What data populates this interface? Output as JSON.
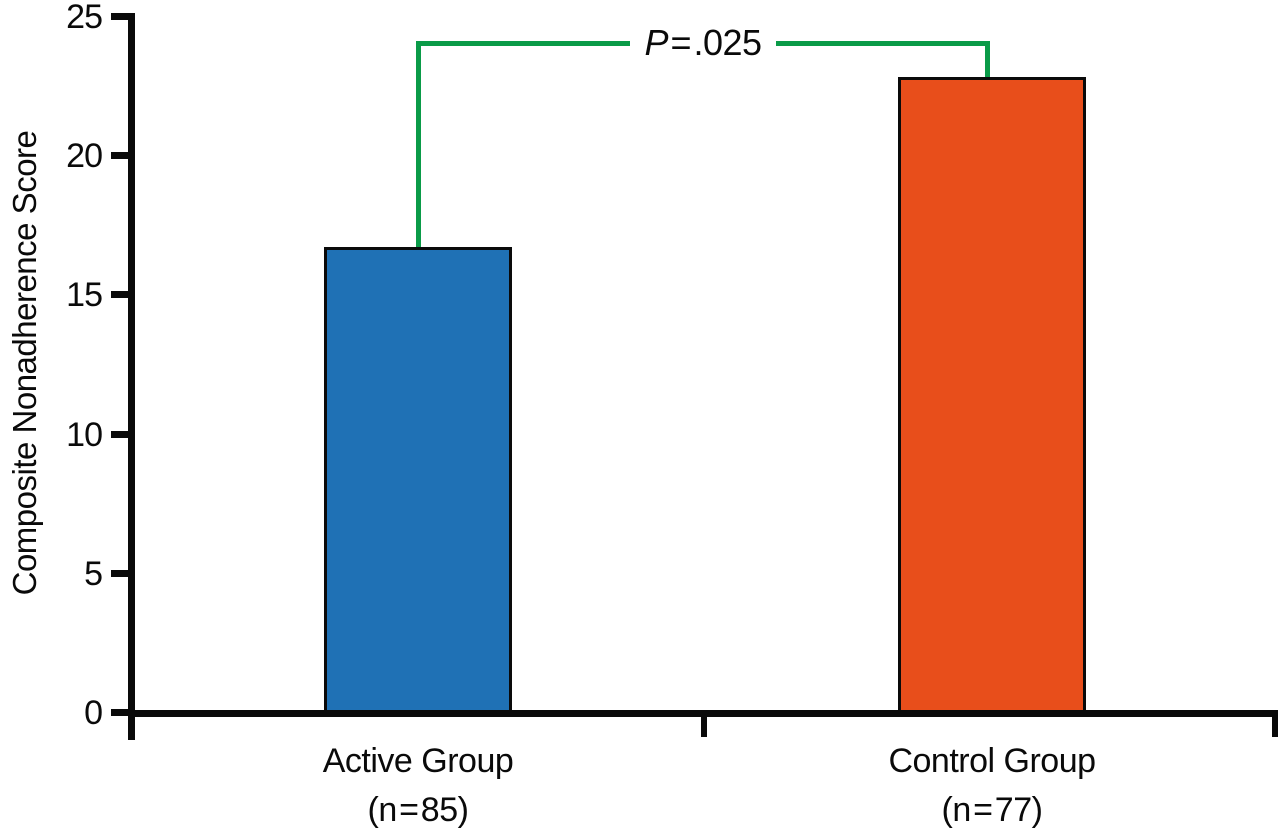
{
  "figure": {
    "y_axis": {
      "title": "Composite Nonadherence Score",
      "tick_labels": [
        "25",
        "20",
        "15",
        "10",
        "5",
        "0"
      ]
    },
    "x_axis": {
      "groups": [
        {
          "name": "Active Group",
          "n_label": "(n = 85)"
        },
        {
          "name": "Control Group",
          "n_label": "(n = 77)"
        }
      ]
    },
    "significance": {
      "p_symbol": "P",
      "p_value_text": " = .025"
    },
    "colors": {
      "active_bar": "#1F71B5",
      "control_bar": "#E84E1B",
      "bracket_green": "#0A9B48",
      "axis_black": "#0A0A0A"
    }
  },
  "chart_data": {
    "type": "bar",
    "categories": [
      "Active Group (n=85)",
      "Control Group (n=77)"
    ],
    "values": [
      16.7,
      22.8
    ],
    "title": "",
    "xlabel": "",
    "ylabel": "Composite Nonadherence Score",
    "ylim": [
      0,
      25
    ],
    "yticks": [
      0,
      5,
      10,
      15,
      20,
      25
    ],
    "bar_colors": [
      "#1F71B5",
      "#E84E1B"
    ],
    "grid": false,
    "legend": false,
    "annotation": {
      "text": "P = .025",
      "type": "significance-bracket",
      "connects": [
        "Active Group (n=85)",
        "Control Group (n=77)"
      ],
      "line_color": "#0A9B48"
    }
  }
}
